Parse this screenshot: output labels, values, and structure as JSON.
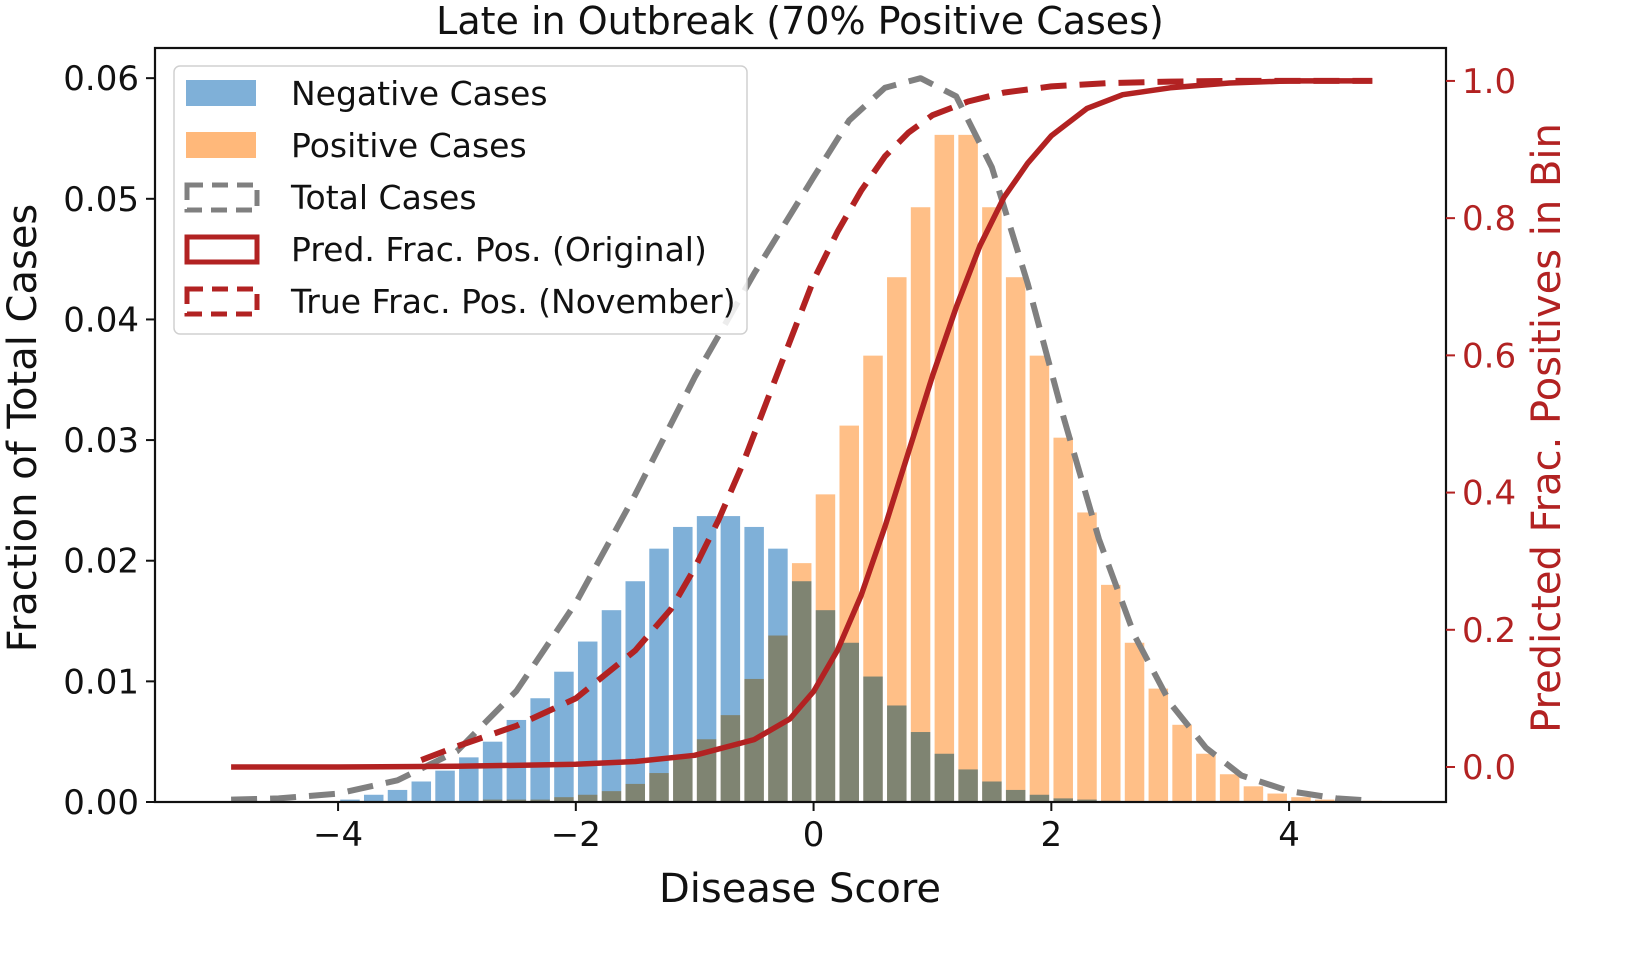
{
  "chart_data": {
    "type": "bar",
    "title": "Late in Outbreak (70% Positive Cases)",
    "xlabel": "Disease Score",
    "ylabel": "Fraction of Total Cases",
    "y2label": "Predicted Frac. Positives in Bin",
    "xlim": [
      -5.54,
      5.32
    ],
    "ylim": [
      0,
      0.0625
    ],
    "y2lim": [
      -0.051,
      1.048
    ],
    "xticks": [
      -4,
      -2,
      0,
      2,
      4
    ],
    "xtick_labels": [
      "−4",
      "−2",
      "0",
      "2",
      "4"
    ],
    "yticks": [
      0.0,
      0.01,
      0.02,
      0.03,
      0.04,
      0.05,
      0.06
    ],
    "ytick_labels": [
      "0.00",
      "0.01",
      "0.02",
      "0.03",
      "0.04",
      "0.05",
      "0.06"
    ],
    "y2ticks": [
      0.0,
      0.2,
      0.4,
      0.6,
      0.8,
      1.0
    ],
    "y2tick_labels": [
      "0.0",
      "0.2",
      "0.4",
      "0.6",
      "0.8",
      "1.0"
    ],
    "grid": false,
    "legend_position": "top-left",
    "colors": {
      "negative": "#7fb0d8",
      "positive": "#ffb87a",
      "overlap": "#c99a6e",
      "total": "#808080",
      "pred": "#b22222",
      "true": "#b22222"
    },
    "legend": [
      {
        "label": "Negative Cases",
        "style": "patch",
        "color_key": "negative"
      },
      {
        "label": "Positive Cases",
        "style": "patch",
        "color_key": "positive"
      },
      {
        "label": "Total Cases",
        "style": "dashed-box",
        "color_key": "total"
      },
      {
        "label": "Pred. Frac. Pos. (Original)",
        "style": "solid-box",
        "color_key": "pred"
      },
      {
        "label": "True Frac. Pos. (November)",
        "style": "dashed-box",
        "color_key": "true"
      }
    ],
    "bin_width": 0.2,
    "x": [
      -3.9,
      -3.7,
      -3.5,
      -3.3,
      -3.1,
      -2.9,
      -2.7,
      -2.5,
      -2.3,
      -2.1,
      -1.9,
      -1.7,
      -1.5,
      -1.3,
      -1.1,
      -0.9,
      -0.7,
      -0.5,
      -0.3,
      -0.1,
      0.1,
      0.3,
      0.5,
      0.7,
      0.9,
      1.1,
      1.3,
      1.5,
      1.7,
      1.9,
      2.1,
      2.3,
      2.5,
      2.7,
      2.9,
      3.1,
      3.3,
      3.5,
      3.7,
      3.9,
      4.1,
      4.3,
      4.5,
      4.7
    ],
    "series": [
      {
        "name": "Negative Cases",
        "values": [
          0.0002,
          0.0006,
          0.001,
          0.0017,
          0.0026,
          0.0037,
          0.005,
          0.0068,
          0.0086,
          0.0108,
          0.0133,
          0.0159,
          0.0183,
          0.021,
          0.0228,
          0.0237,
          0.0237,
          0.0228,
          0.021,
          0.0183,
          0.0159,
          0.0132,
          0.0104,
          0.008,
          0.0058,
          0.004,
          0.0027,
          0.0017,
          0.001,
          0.0006,
          0.0003,
          0.0002,
          0.0001,
          0.0,
          0.0,
          0.0,
          0.0,
          0.0,
          0.0,
          0.0,
          0.0,
          0.0,
          0.0,
          0.0
        ]
      },
      {
        "name": "Positive Cases",
        "values": [
          0.0,
          0.0,
          0.0,
          0.0,
          0.0,
          0.0,
          0.0002,
          0.0002,
          0.0002,
          0.0004,
          0.0006,
          0.0009,
          0.0015,
          0.0024,
          0.0036,
          0.0052,
          0.0072,
          0.0102,
          0.0138,
          0.0198,
          0.0255,
          0.0312,
          0.037,
          0.0435,
          0.0493,
          0.0553,
          0.0553,
          0.0493,
          0.0435,
          0.037,
          0.0302,
          0.024,
          0.018,
          0.0132,
          0.0094,
          0.0064,
          0.004,
          0.0023,
          0.0013,
          0.0007,
          0.0004,
          0.0002,
          0.0001,
          0.0001
        ]
      }
    ],
    "total_curve": {
      "name": "Total Cases",
      "x": [
        -4.9,
        -4.5,
        -4.0,
        -3.5,
        -3.0,
        -2.5,
        -2.0,
        -1.5,
        -1.0,
        -0.5,
        0.0,
        0.3,
        0.6,
        0.9,
        1.2,
        1.5,
        1.8,
        2.1,
        2.4,
        2.7,
        3.0,
        3.3,
        3.6,
        4.0,
        4.4,
        4.7
      ],
      "y": [
        0.0002,
        0.0003,
        0.0007,
        0.0018,
        0.0042,
        0.0092,
        0.0165,
        0.0255,
        0.0352,
        0.0438,
        0.0518,
        0.0565,
        0.0592,
        0.06,
        0.0585,
        0.0526,
        0.043,
        0.032,
        0.0218,
        0.0138,
        0.0082,
        0.0045,
        0.0022,
        0.0009,
        0.0003,
        0.0001
      ]
    },
    "pred_curve": {
      "name": "Pred. Frac. Pos. (Original)",
      "x": [
        -4.9,
        -4.0,
        -3.0,
        -2.0,
        -1.5,
        -1.0,
        -0.5,
        -0.2,
        0.0,
        0.2,
        0.4,
        0.6,
        0.8,
        1.0,
        1.2,
        1.4,
        1.6,
        1.8,
        2.0,
        2.3,
        2.6,
        3.0,
        3.5,
        4.0,
        4.7
      ],
      "y": [
        0.0,
        0.0,
        0.001,
        0.004,
        0.008,
        0.017,
        0.04,
        0.07,
        0.11,
        0.17,
        0.25,
        0.35,
        0.46,
        0.57,
        0.67,
        0.76,
        0.83,
        0.88,
        0.92,
        0.96,
        0.98,
        0.99,
        0.997,
        1.0,
        1.0
      ]
    },
    "true_curve": {
      "name": "True Frac. Pos. (November)",
      "x": [
        -3.3,
        -3.0,
        -2.5,
        -2.0,
        -1.5,
        -1.2,
        -1.0,
        -0.8,
        -0.6,
        -0.4,
        -0.2,
        0.0,
        0.2,
        0.4,
        0.6,
        0.8,
        1.0,
        1.3,
        1.6,
        2.0,
        2.5,
        3.0,
        3.5,
        4.0,
        4.7
      ],
      "y": [
        0.01,
        0.03,
        0.06,
        0.1,
        0.17,
        0.23,
        0.29,
        0.36,
        0.44,
        0.53,
        0.62,
        0.71,
        0.78,
        0.84,
        0.89,
        0.925,
        0.95,
        0.97,
        0.983,
        0.992,
        0.997,
        0.999,
        1.0,
        1.0,
        1.0
      ]
    }
  }
}
